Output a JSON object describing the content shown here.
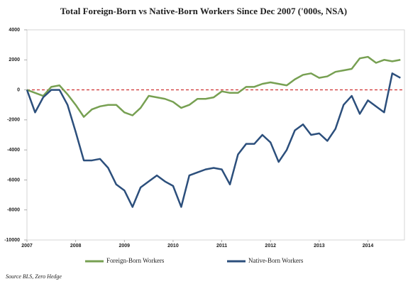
{
  "chart_data": {
    "type": "line",
    "title": "Total Foreign-Born vs Native-Born Workers Since Dec 2007 ('000s, NSA)",
    "source": "Source BLS, Zero Hedge",
    "x": [
      2007,
      2007.167,
      2007.333,
      2007.5,
      2007.667,
      2007.833,
      2008,
      2008.167,
      2008.333,
      2008.5,
      2008.667,
      2008.833,
      2009,
      2009.167,
      2009.333,
      2009.5,
      2009.667,
      2009.833,
      2010,
      2010.167,
      2010.333,
      2010.5,
      2010.667,
      2010.833,
      2011,
      2011.167,
      2011.333,
      2011.5,
      2011.667,
      2011.833,
      2012,
      2012.167,
      2012.333,
      2012.5,
      2012.667,
      2012.833,
      2013,
      2013.167,
      2013.333,
      2013.5,
      2013.667,
      2013.833,
      2014,
      2014.167,
      2014.333,
      2014.5,
      2014.667
    ],
    "series": [
      {
        "name": "Foreign-Born Workers",
        "color": "#77a052",
        "values": [
          0,
          -200,
          -400,
          200,
          300,
          -300,
          -1000,
          -1800,
          -1300,
          -1100,
          -1000,
          -1000,
          -1500,
          -1700,
          -1200,
          -400,
          -500,
          -600,
          -800,
          -1200,
          -1000,
          -600,
          -600,
          -500,
          -100,
          -200,
          -200,
          200,
          200,
          400,
          500,
          400,
          300,
          700,
          1000,
          1100,
          800,
          900,
          1200,
          1300,
          1400,
          2100,
          2200,
          1800,
          2000,
          1900,
          2000
        ]
      },
      {
        "name": "Native-Born Workers",
        "color": "#2c4f7c",
        "values": [
          0,
          -1500,
          -500,
          0,
          0,
          -1000,
          -2800,
          -4700,
          -4700,
          -4600,
          -5200,
          -6300,
          -6700,
          -7800,
          -6500,
          -6100,
          -5700,
          -6100,
          -6400,
          -7800,
          -5700,
          -5500,
          -5300,
          -5200,
          -5300,
          -6300,
          -4300,
          -3600,
          -3600,
          -3000,
          -3500,
          -4800,
          -4000,
          -2700,
          -2300,
          -3000,
          -2900,
          -3400,
          -2600,
          -1000,
          -400,
          -1600,
          -700,
          -1100,
          -1500,
          1100,
          800
        ]
      }
    ],
    "xlim": [
      2007,
      2014.75
    ],
    "xticks": [
      2007,
      2008,
      2009,
      2010,
      2011,
      2012,
      2013,
      2014
    ],
    "ylim": [
      -10000,
      4000
    ],
    "yticks": [
      4000,
      2000,
      0,
      -2000,
      -4000,
      -6000,
      -8000,
      -10000
    ],
    "zero_line_color": "#cc2222"
  }
}
